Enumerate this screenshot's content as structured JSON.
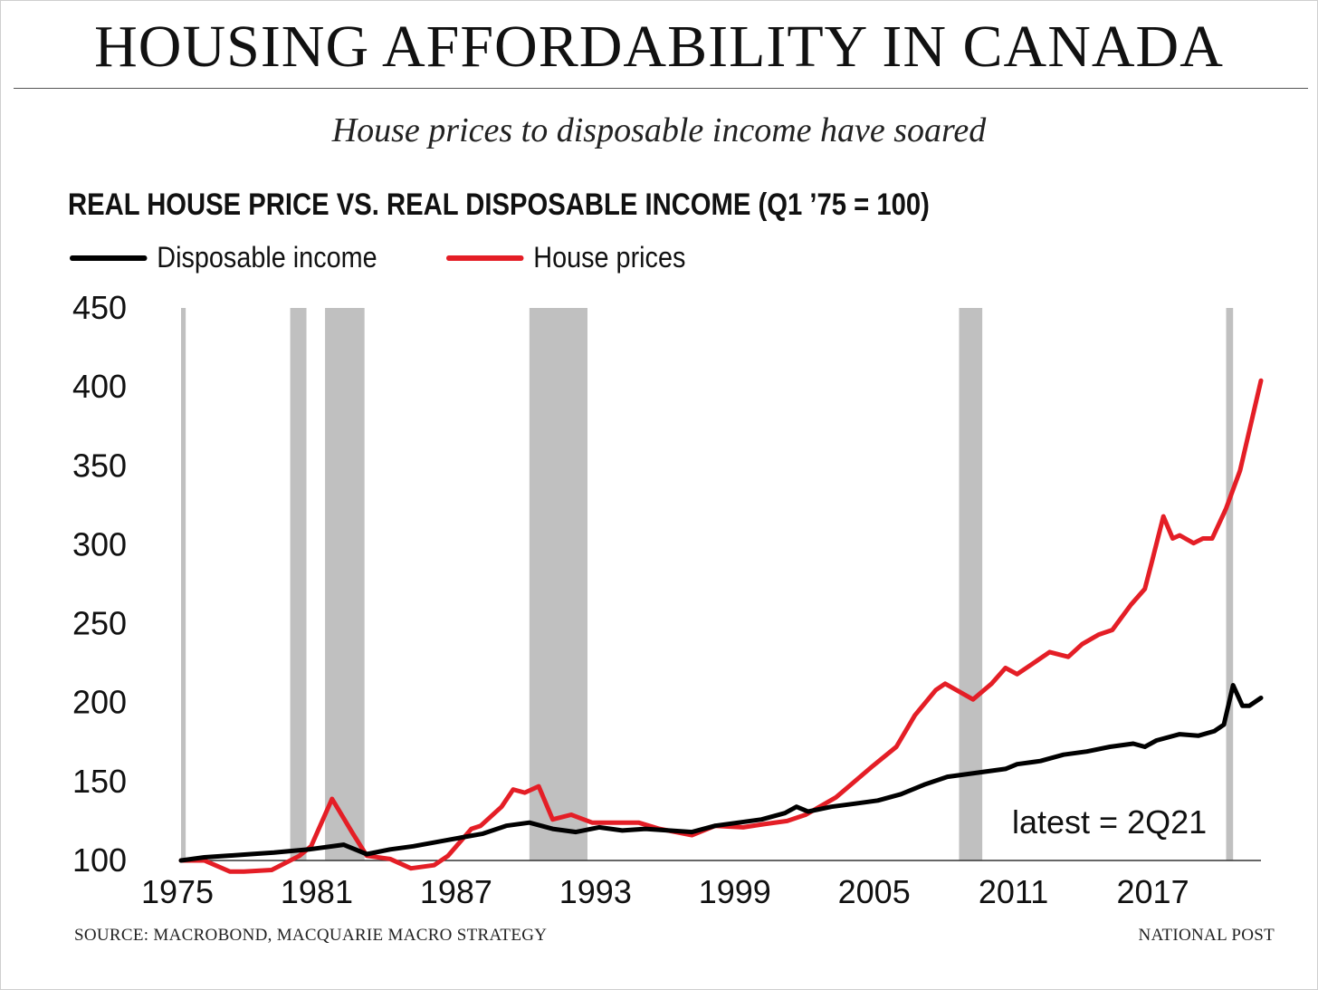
{
  "title": "HOUSING AFFORDABILITY IN CANADA",
  "subtitle": "House prices to disposable income have soared",
  "source": "SOURCE: MACROBOND, MACQUARIE MACRO STRATEGY",
  "publisher": "NATIONAL POST",
  "chart_data": {
    "type": "line",
    "title": "REAL HOUSE PRICE VS. REAL DISPOSABLE INCOME (Q1 ’75 = 100)",
    "xlabel": "",
    "ylabel": "",
    "xlim": [
      1975,
      2021.5
    ],
    "ylim": [
      100,
      450
    ],
    "yticks": [
      "100",
      "150",
      "200",
      "250",
      "300",
      "350",
      "400",
      "450"
    ],
    "xticks": [
      "1975",
      "1981",
      "1987",
      "1993",
      "1999",
      "2005",
      "2011",
      "2017"
    ],
    "annotation": "latest = 2Q21",
    "legend_placement": "top-left",
    "recessions": [
      [
        1975.0,
        1975.2
      ],
      [
        1979.7,
        1980.4
      ],
      [
        1981.2,
        1982.9
      ],
      [
        1990.0,
        1992.5
      ],
      [
        2008.5,
        2009.5
      ],
      [
        2020.0,
        2020.3
      ]
    ],
    "recession_color": "#c0c0c0",
    "series": [
      {
        "name": "Disposable income",
        "color": "#000000",
        "points": [
          [
            1975,
            100
          ],
          [
            1976,
            102
          ],
          [
            1977,
            103
          ],
          [
            1978,
            104
          ],
          [
            1979,
            105
          ],
          [
            1980.5,
            107
          ],
          [
            1982,
            110
          ],
          [
            1983,
            104
          ],
          [
            1984,
            107
          ],
          [
            1985,
            109
          ],
          [
            1986.5,
            113
          ],
          [
            1988,
            117
          ],
          [
            1989,
            122
          ],
          [
            1990,
            124
          ],
          [
            1991,
            120
          ],
          [
            1992,
            118
          ],
          [
            1993,
            121
          ],
          [
            1994,
            119
          ],
          [
            1995,
            120
          ],
          [
            1996,
            119
          ],
          [
            1997,
            118
          ],
          [
            1998,
            122
          ],
          [
            1999,
            124
          ],
          [
            2000,
            126
          ],
          [
            2001,
            130
          ],
          [
            2001.5,
            134
          ],
          [
            2002,
            131
          ],
          [
            2003,
            134
          ],
          [
            2004,
            136
          ],
          [
            2005,
            138
          ],
          [
            2006,
            142
          ],
          [
            2007,
            148
          ],
          [
            2008,
            153
          ],
          [
            2009.5,
            156
          ],
          [
            2010.5,
            158
          ],
          [
            2011,
            161
          ],
          [
            2012,
            163
          ],
          [
            2013,
            167
          ],
          [
            2014,
            169
          ],
          [
            2015,
            172
          ],
          [
            2016,
            174
          ],
          [
            2016.5,
            172
          ],
          [
            2017,
            176
          ],
          [
            2018,
            180
          ],
          [
            2018.8,
            179
          ],
          [
            2019.5,
            182
          ],
          [
            2019.9,
            186
          ],
          [
            2020.3,
            211
          ],
          [
            2020.7,
            198
          ],
          [
            2021.0,
            198
          ],
          [
            2021.5,
            203
          ]
        ]
      },
      {
        "name": "House prices",
        "color": "#e41e26",
        "points": [
          [
            1975,
            100
          ],
          [
            1976,
            100
          ],
          [
            1977.1,
            93
          ],
          [
            1977.7,
            93
          ],
          [
            1978.9,
            94
          ],
          [
            1980.1,
            103
          ],
          [
            1980.6,
            109
          ],
          [
            1981.5,
            139
          ],
          [
            1982.4,
            117
          ],
          [
            1983,
            103
          ],
          [
            1984,
            101
          ],
          [
            1984.9,
            95
          ],
          [
            1985.9,
            97
          ],
          [
            1986.5,
            103
          ],
          [
            1987.5,
            120
          ],
          [
            1987.9,
            122
          ],
          [
            1988.8,
            134
          ],
          [
            1989.3,
            145
          ],
          [
            1989.8,
            143
          ],
          [
            1990.4,
            147
          ],
          [
            1991,
            126
          ],
          [
            1991.8,
            129
          ],
          [
            1992.7,
            124
          ],
          [
            1993.7,
            124
          ],
          [
            1994.7,
            124
          ],
          [
            1995.6,
            120
          ],
          [
            1997,
            116
          ],
          [
            1998,
            122
          ],
          [
            1999.2,
            121
          ],
          [
            2000.1,
            123
          ],
          [
            2001.1,
            125
          ],
          [
            2001.9,
            129
          ],
          [
            2003.2,
            140
          ],
          [
            2004,
            150
          ],
          [
            2004.8,
            160
          ],
          [
            2005.8,
            172
          ],
          [
            2006.6,
            192
          ],
          [
            2007.5,
            208
          ],
          [
            2007.9,
            212
          ],
          [
            2009.1,
            202
          ],
          [
            2009.9,
            212
          ],
          [
            2010.5,
            222
          ],
          [
            2011,
            218
          ],
          [
            2011.6,
            224
          ],
          [
            2012.4,
            232
          ],
          [
            2013.2,
            229
          ],
          [
            2013.8,
            237
          ],
          [
            2014.5,
            243
          ],
          [
            2015.1,
            246
          ],
          [
            2015.9,
            262
          ],
          [
            2016.5,
            272
          ],
          [
            2016.8,
            289
          ],
          [
            2017.3,
            318
          ],
          [
            2017.7,
            304
          ],
          [
            2018,
            306
          ],
          [
            2018.6,
            301
          ],
          [
            2019,
            304
          ],
          [
            2019.4,
            304
          ],
          [
            2020,
            323
          ],
          [
            2020.6,
            347
          ],
          [
            2021.5,
            404
          ]
        ]
      }
    ]
  }
}
